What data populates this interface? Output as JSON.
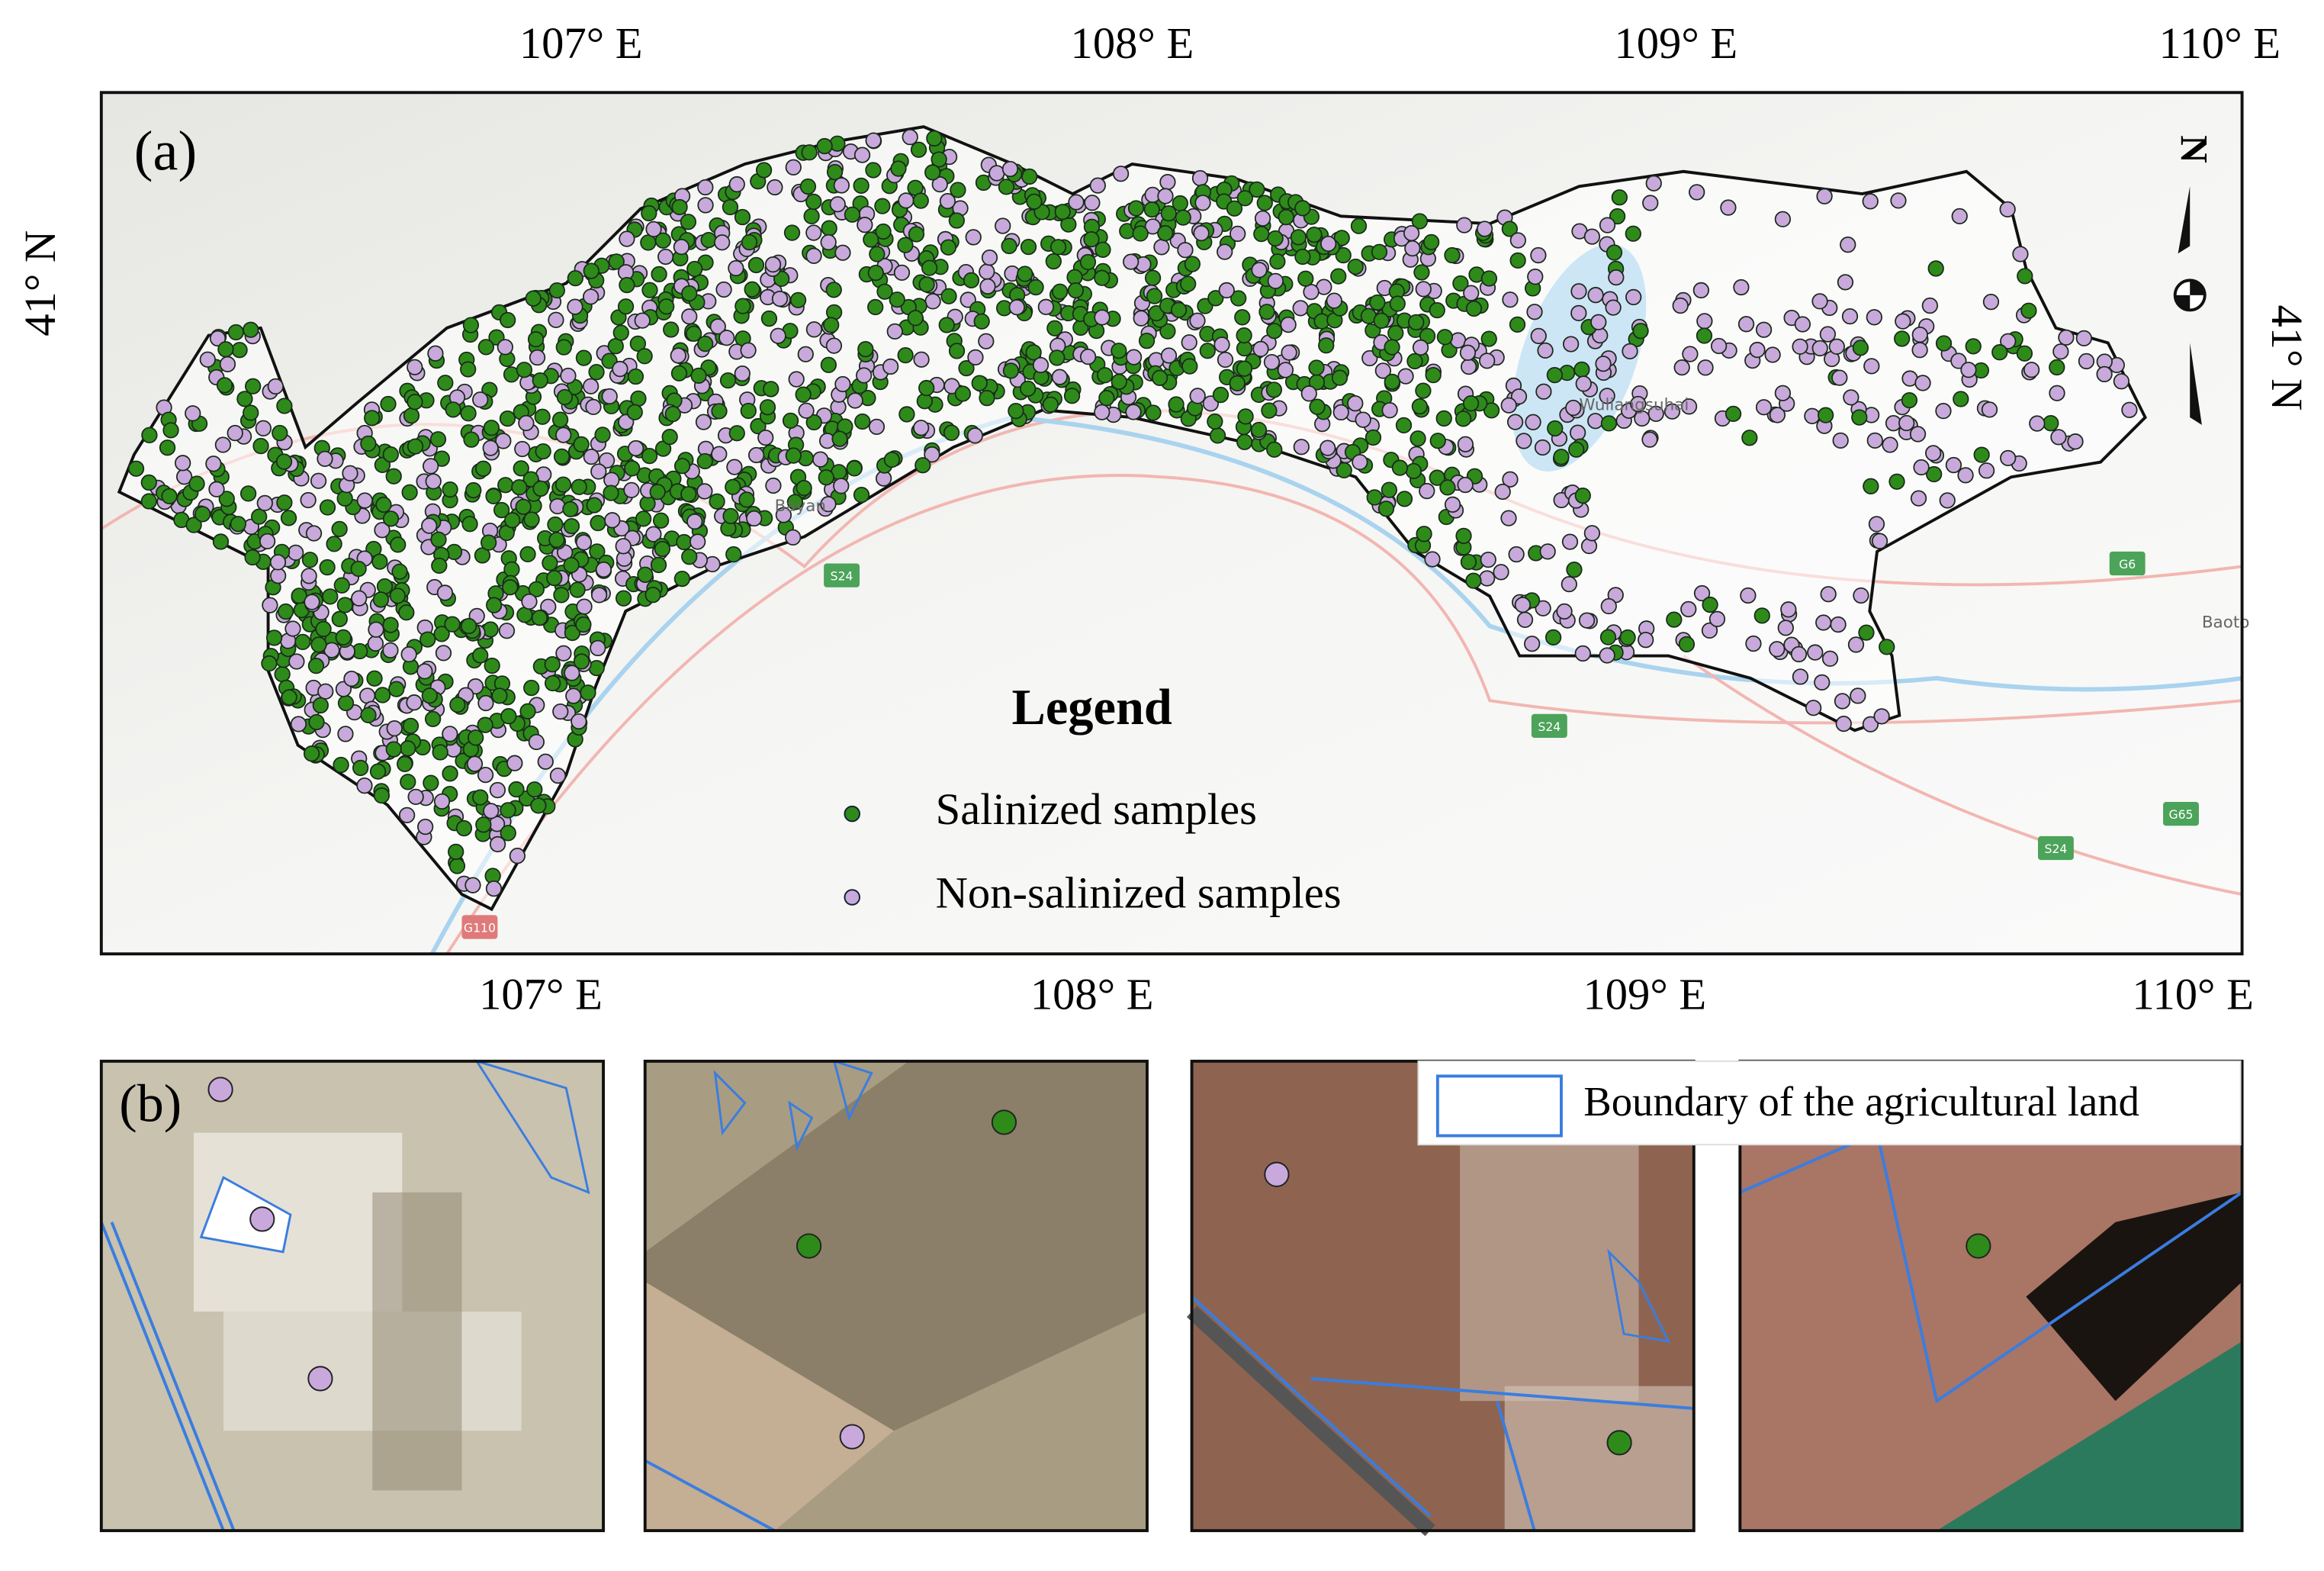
{
  "map": {
    "panel_a_label": "(a)",
    "panel_b_label": "(b)",
    "top_ticks": [
      "107° E",
      "108° E",
      "109° E",
      "110° E"
    ],
    "bottom_ticks": [
      "107° E",
      "108° E",
      "109° E",
      "110° E"
    ],
    "left_ticks": [
      "41° N"
    ],
    "right_ticks": [
      "41° N"
    ],
    "north_label": "N",
    "legend": {
      "title": "Legend",
      "items": [
        "Salinized samples",
        "Non-salinized samples"
      ]
    },
    "place_labels": [
      "Bayan",
      "Wuliangsuhai",
      "Baoto"
    ],
    "road_labels": [
      "S24",
      "S24",
      "S24",
      "G6",
      "G65",
      "G110"
    ]
  },
  "panels_b": {
    "legend": "Boundary of the agricultural land"
  }
}
